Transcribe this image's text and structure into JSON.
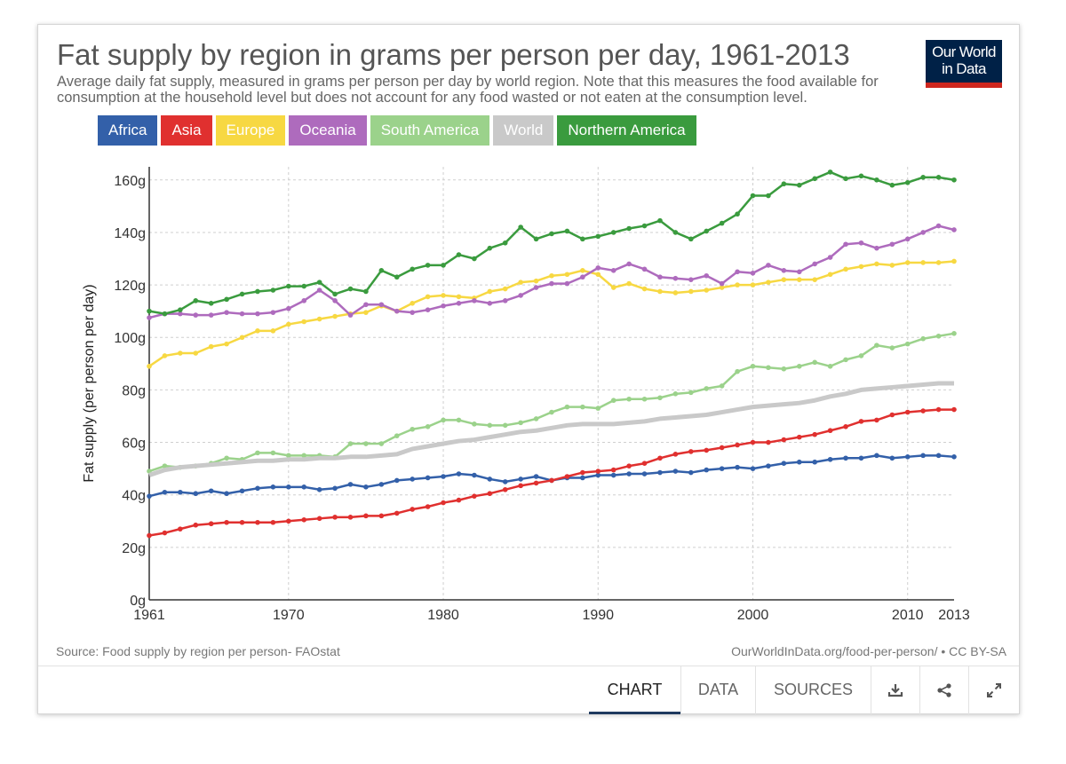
{
  "title": "Fat supply by region in grams per person per day, 1961-2013",
  "subtitle": "Average daily fat supply, measured in grams per person per day by world region. Note that this measures the food available for consumption at the household level but does not account for any food wasted or not eaten at the consumption level.",
  "logo": {
    "line1": "Our World",
    "line2": "in Data"
  },
  "legend": [
    {
      "label": "Africa",
      "color": "#3360a9"
    },
    {
      "label": "Asia",
      "color": "#e0302f"
    },
    {
      "label": "Europe",
      "color": "#f7d842"
    },
    {
      "label": "Oceania",
      "color": "#ae6bbd"
    },
    {
      "label": "South America",
      "color": "#9bd28b"
    },
    {
      "label": "World",
      "color": "#c9c9c9"
    },
    {
      "label": "Northern America",
      "color": "#3a9b3e"
    }
  ],
  "source": "Source: Food supply by region per person- FAOstat",
  "url": "OurWorldInData.org/food-per-person/ • CC BY-SA",
  "tabs": {
    "chart": "CHART",
    "data": "DATA",
    "sources": "SOURCES"
  },
  "icons": [
    "download-icon",
    "share-icon",
    "expand-icon"
  ],
  "chart_data": {
    "type": "line",
    "title": "Fat supply by region in grams per person per day, 1961-2013",
    "ylabel": "Fat supply (per person per day)",
    "xlabel": "",
    "x_ticks": [
      "1961",
      "1970",
      "1980",
      "1990",
      "2000",
      "2010",
      "2013"
    ],
    "y_ticks": [
      "0g",
      "20g",
      "40g",
      "60g",
      "80g",
      "100g",
      "120g",
      "140g",
      "160g"
    ],
    "xlim": [
      1961,
      2013
    ],
    "ylim": [
      0,
      165
    ],
    "grid": true,
    "x": [
      1961,
      1962,
      1963,
      1964,
      1965,
      1966,
      1967,
      1968,
      1969,
      1970,
      1971,
      1972,
      1973,
      1974,
      1975,
      1976,
      1977,
      1978,
      1979,
      1980,
      1981,
      1982,
      1983,
      1984,
      1985,
      1986,
      1987,
      1988,
      1989,
      1990,
      1991,
      1992,
      1993,
      1994,
      1995,
      1996,
      1997,
      1998,
      1999,
      2000,
      2001,
      2002,
      2003,
      2004,
      2005,
      2006,
      2007,
      2008,
      2009,
      2010,
      2011,
      2012,
      2013
    ],
    "series": [
      {
        "name": "Africa",
        "color": "#3360a9",
        "values": [
          39.5,
          41,
          41,
          40.5,
          41.5,
          40.5,
          41.5,
          42.5,
          43,
          43,
          43,
          42,
          42.5,
          44,
          43,
          44,
          45.5,
          46,
          46.5,
          47,
          48,
          47.5,
          46,
          45,
          46,
          47,
          45.5,
          46.5,
          46.5,
          47.5,
          47.5,
          48,
          48,
          48.5,
          49,
          48.5,
          49.5,
          50,
          50.5,
          50,
          51,
          52,
          52.5,
          52.5,
          53.5,
          54,
          54,
          55,
          54,
          54.5,
          55,
          55,
          54.5
        ]
      },
      {
        "name": "Asia",
        "color": "#e0302f",
        "values": [
          24.5,
          25.5,
          27,
          28.5,
          29,
          29.5,
          29.5,
          29.5,
          29.5,
          30,
          30.5,
          31,
          31.5,
          31.5,
          32,
          32,
          33,
          34.5,
          35.5,
          37,
          38,
          39.5,
          40.5,
          42,
          43.5,
          44.5,
          45.5,
          47,
          48.5,
          49,
          49.5,
          51,
          52,
          54,
          55.5,
          56.5,
          57,
          58,
          59,
          60,
          60,
          61,
          62,
          63,
          64.5,
          66,
          68,
          68.5,
          70.5,
          71.5,
          72,
          72.5,
          72.5
        ]
      },
      {
        "name": "Europe",
        "color": "#f7d842",
        "values": [
          89,
          93,
          94,
          94,
          96.5,
          97.5,
          100,
          102.5,
          102.5,
          105,
          106,
          107,
          108,
          109,
          109.5,
          112,
          110,
          113,
          115.5,
          116,
          115.5,
          115,
          117.5,
          118.5,
          121,
          121.5,
          123.5,
          124,
          125.5,
          124,
          119,
          120.5,
          118.5,
          117.5,
          117,
          117.5,
          118,
          119,
          120,
          120,
          121,
          122,
          122,
          122,
          124,
          126,
          127,
          128,
          127.5,
          128.5,
          128.5,
          128.5,
          129
        ]
      },
      {
        "name": "Oceania",
        "color": "#ae6bbd",
        "values": [
          107.5,
          109,
          109,
          108.5,
          108.5,
          109.5,
          109,
          109,
          109.5,
          111,
          114,
          118,
          114,
          108.5,
          112.5,
          112.5,
          110,
          109.5,
          110.5,
          112,
          113,
          114,
          113,
          114,
          116,
          119,
          120.5,
          120.5,
          123,
          126.5,
          125.5,
          128,
          126,
          123,
          122.5,
          122,
          123.5,
          120.5,
          125,
          124.5,
          127.5,
          125.5,
          125,
          128,
          130.5,
          135.5,
          136,
          134,
          135.5,
          137.5,
          140,
          142.5,
          141
        ]
      },
      {
        "name": "South America",
        "color": "#9bd28b",
        "values": [
          49,
          51,
          50.5,
          51,
          52,
          54,
          53.5,
          56,
          56,
          55,
          55,
          55,
          54.5,
          59.5,
          59.5,
          59.5,
          62.5,
          65,
          66,
          68.5,
          68.5,
          67,
          66.5,
          66.5,
          67.5,
          69,
          71.5,
          73.5,
          73.5,
          73,
          76,
          76.5,
          76.5,
          77,
          78.5,
          79,
          80.5,
          81.5,
          87,
          89,
          88.5,
          88,
          89,
          90.5,
          89,
          91.5,
          93,
          97,
          96,
          97.5,
          99.5,
          100.5,
          101.5
        ]
      },
      {
        "name": "World",
        "color": "#c9c9c9",
        "values": [
          47.5,
          49.5,
          50.5,
          51,
          51.5,
          52,
          52.5,
          53,
          53,
          53.5,
          53.5,
          54,
          54,
          54.5,
          54.5,
          55,
          55.5,
          57.5,
          58.5,
          59.5,
          60.5,
          61,
          62,
          63,
          64,
          64.5,
          65.5,
          66.5,
          67,
          67,
          67,
          67.5,
          68,
          69,
          69.5,
          70,
          70.5,
          71.5,
          72.5,
          73.5,
          74,
          74.5,
          75,
          76,
          77.5,
          78.5,
          80,
          80.5,
          81,
          81.5,
          82,
          82.5,
          82.5
        ]
      },
      {
        "name": "Northern America",
        "color": "#3a9b3e",
        "values": [
          110,
          109,
          110.5,
          114,
          113,
          114.5,
          116.5,
          117.5,
          118,
          119.5,
          119.5,
          121,
          116.5,
          118.5,
          117.5,
          125.5,
          123,
          126,
          127.5,
          127.5,
          131.5,
          130,
          134,
          136,
          142,
          137.5,
          139.5,
          140.5,
          137.5,
          138.5,
          140,
          141.5,
          142.5,
          144.5,
          140,
          137.5,
          140.5,
          143.5,
          147,
          154,
          154,
          158.5,
          158,
          160.5,
          163,
          160.5,
          161.5,
          160,
          158,
          159,
          161,
          161,
          160
        ]
      }
    ]
  }
}
